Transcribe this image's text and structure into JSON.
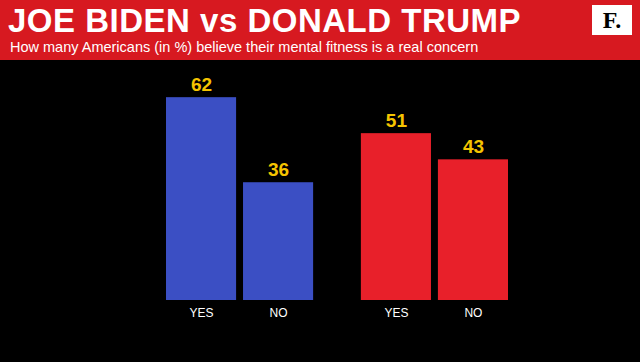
{
  "chart_data": {
    "type": "bar",
    "title": "JOE BIDEN vs DONALD TRUMP",
    "subtitle": "How many Americans (in %) believe their mental fitness is a real concern",
    "annotations": [
      "F."
    ],
    "categories": [
      "YES",
      "NO",
      "YES",
      "NO"
    ],
    "values": [
      62,
      36,
      51,
      43
    ],
    "colors": [
      "#3b4fc4",
      "#3b4fc4",
      "#e8202a",
      "#e8202a"
    ],
    "ylim": [
      0,
      70
    ],
    "data_labels": true,
    "tick_labels": "x"
  }
}
